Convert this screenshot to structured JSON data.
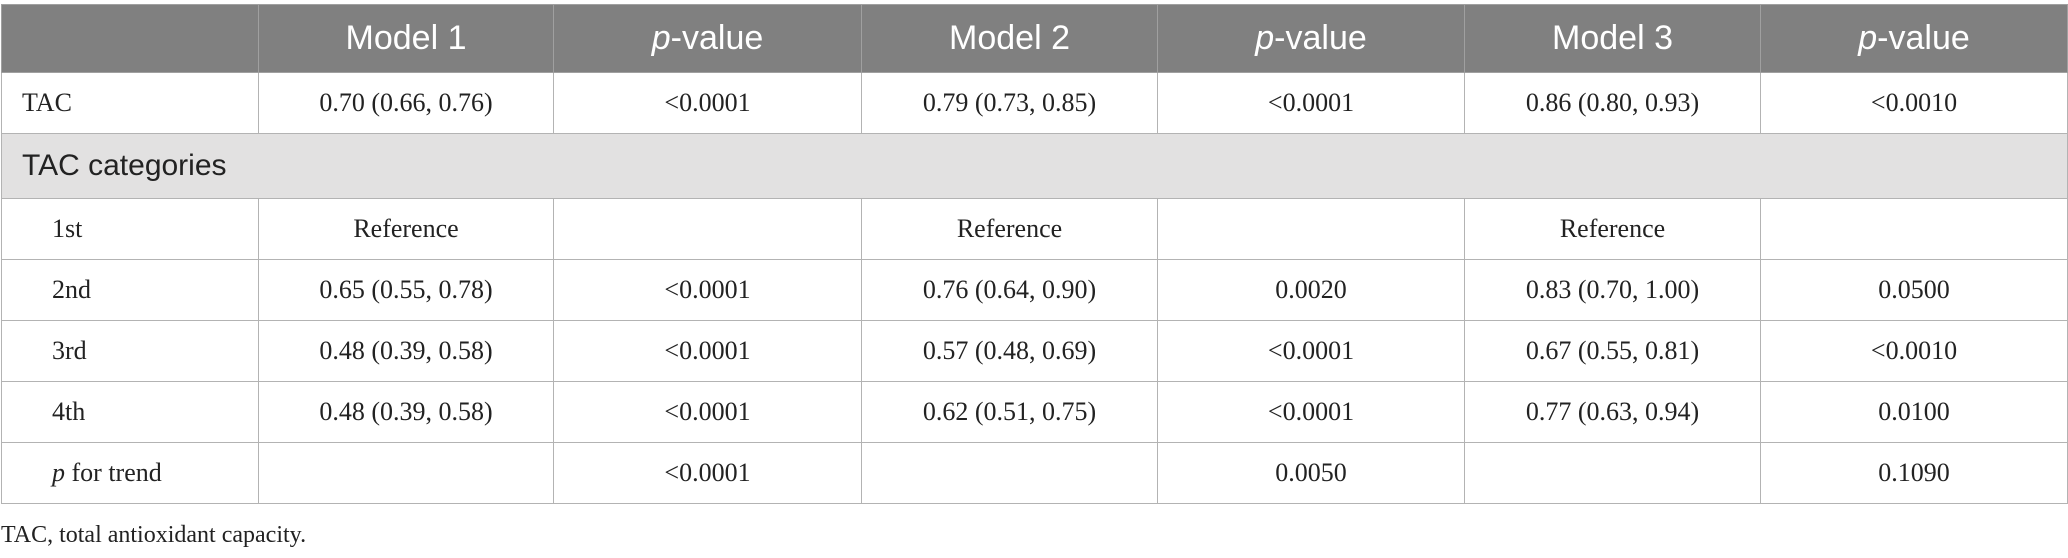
{
  "table": {
    "header": {
      "corner": "",
      "columns": [
        {
          "prefix": "",
          "italic": "",
          "text": "Model 1"
        },
        {
          "prefix": "",
          "italic": "p",
          "text": "-value"
        },
        {
          "prefix": "",
          "italic": "",
          "text": "Model 2"
        },
        {
          "prefix": "",
          "italic": "p",
          "text": "-value"
        },
        {
          "prefix": "",
          "italic": "",
          "text": "Model 3"
        },
        {
          "prefix": "",
          "italic": "p",
          "text": "-value"
        }
      ]
    },
    "rows": {
      "tac": {
        "label": "TAC",
        "cells": [
          "0.70 (0.66, 0.76)",
          "<0.0001",
          "0.79 (0.73, 0.85)",
          "<0.0001",
          "0.86 (0.80, 0.93)",
          "<0.0010"
        ]
      },
      "section": {
        "label": "TAC categories"
      },
      "first": {
        "label": "1st",
        "cells": [
          "Reference",
          "",
          "Reference",
          "",
          "Reference",
          ""
        ]
      },
      "second": {
        "label": "2nd",
        "cells": [
          "0.65 (0.55, 0.78)",
          "<0.0001",
          "0.76 (0.64, 0.90)",
          "0.0020",
          "0.83 (0.70, 1.00)",
          "0.0500"
        ]
      },
      "third": {
        "label": "3rd",
        "cells": [
          "0.48 (0.39, 0.58)",
          "<0.0001",
          "0.57 (0.48, 0.69)",
          "<0.0001",
          "0.67 (0.55, 0.81)",
          "<0.0010"
        ]
      },
      "fourth": {
        "label": "4th",
        "cells": [
          "0.48 (0.39, 0.58)",
          "<0.0001",
          "0.62 (0.51, 0.75)",
          "<0.0001",
          "0.77 (0.63, 0.94)",
          "0.0100"
        ]
      },
      "trend": {
        "label_italic": "p",
        "label_rest": " for trend",
        "cells": [
          "",
          "<0.0001",
          "",
          "0.0050",
          "",
          "0.1090"
        ]
      }
    }
  },
  "footnote": "TAC, total antioxidant capacity."
}
